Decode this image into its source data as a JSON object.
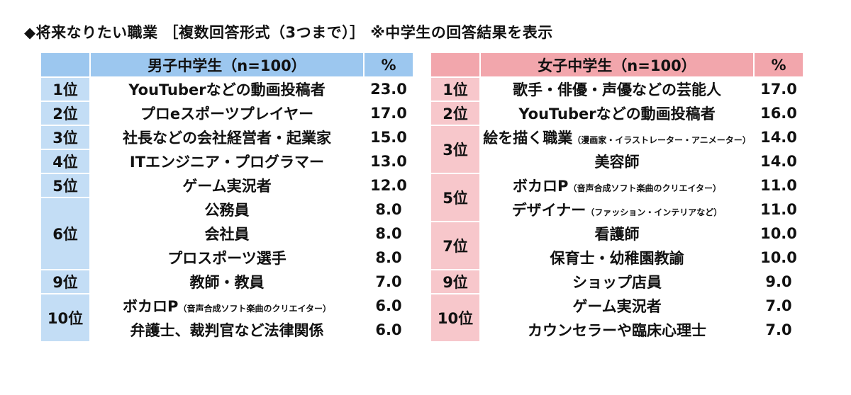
{
  "title": "◆将来なりたい職業 ［複数回答形式（3つまで）］ ※中学生の回答結果を表示",
  "boys": {
    "header": "男子中学生（n=100）",
    "pct_header": "%",
    "rows": [
      {
        "rank": "1位",
        "job": "YouTuberなどの動画投稿者",
        "pct": "23.0"
      },
      {
        "rank": "2位",
        "job": "プロeスポーツプレイヤー",
        "pct": "17.0"
      },
      {
        "rank": "3位",
        "job": "社長などの会社経営者・起業家",
        "pct": "15.0"
      },
      {
        "rank": "4位",
        "job": "ITエンジニア・プログラマー",
        "pct": "13.0"
      },
      {
        "rank": "5位",
        "job": "ゲーム実況者",
        "pct": "12.0"
      },
      {
        "rank": "6位",
        "job": "公務員",
        "pct": "8.0"
      },
      {
        "rank": "",
        "job": "会社員",
        "pct": "8.0"
      },
      {
        "rank": "",
        "job": "プロスポーツ選手",
        "pct": "8.0"
      },
      {
        "rank": "9位",
        "job": "教師・教員",
        "pct": "7.0"
      },
      {
        "rank": "10位",
        "job": "ボカロP",
        "note": "（音声合成ソフト楽曲のクリエイター）",
        "pct": "6.0"
      },
      {
        "rank": "",
        "job": "弁護士、裁判官など法律関係",
        "pct": "6.0"
      }
    ]
  },
  "girls": {
    "header": "女子中学生（n=100）",
    "pct_header": "%",
    "rows": [
      {
        "rank": "1位",
        "job": "歌手・俳優・声優などの芸能人",
        "pct": "17.0"
      },
      {
        "rank": "2位",
        "job": "YouTuberなどの動画投稿者",
        "pct": "16.0"
      },
      {
        "rank": "3位",
        "job": "絵を描く職業",
        "note": "（漫画家・イラストレーター・アニメーター）",
        "pct": "14.0"
      },
      {
        "rank": "",
        "job": "美容師",
        "pct": "14.0"
      },
      {
        "rank": "5位",
        "job": "ボカロP",
        "note": "（音声合成ソフト楽曲のクリエイター）",
        "pct": "11.0"
      },
      {
        "rank": "",
        "job": "デザイナー",
        "note": "（ファッション・インテリアなど）",
        "pct": "11.0"
      },
      {
        "rank": "7位",
        "job": "看護師",
        "pct": "10.0"
      },
      {
        "rank": "",
        "job": "保育士・幼稚園教諭",
        "pct": "10.0"
      },
      {
        "rank": "9位",
        "job": "ショップ店員",
        "pct": "9.0"
      },
      {
        "rank": "10位",
        "job": "ゲーム実況者",
        "pct": "7.0"
      },
      {
        "rank": "",
        "job": "カウンセラーや臨床心理士",
        "pct": "7.0"
      }
    ]
  },
  "colors": {
    "boys_header": "#9cc7ef",
    "boys_rank": "#c3ddf5",
    "girls_header": "#f2a6ac",
    "girls_rank": "#f7c7cb"
  }
}
